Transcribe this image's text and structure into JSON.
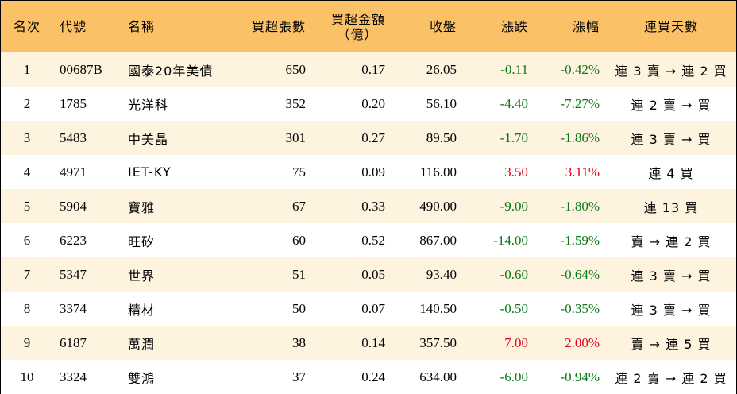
{
  "headers": {
    "rank": "名次",
    "code": "代號",
    "name": "名稱",
    "net_buy_lots": "買超張數",
    "net_buy_amount_line1": "買超金額",
    "net_buy_amount_line2": "（億）",
    "close": "收盤",
    "change": "漲跌",
    "change_pct": "漲幅",
    "streak": "連買天數"
  },
  "colors": {
    "header_bg": "#fbc167",
    "odd_row_bg": "#fef3df",
    "up": "#e0001b",
    "down": "#0a7a16"
  },
  "rows": [
    {
      "rank": "1",
      "code": "00687B",
      "name": "國泰20年美債",
      "lots": "650",
      "amount": "0.17",
      "close": "26.05",
      "change": "-0.11",
      "pct": "-0.42%",
      "dir": "down",
      "streak": "連 3 賣 → 連 2 買"
    },
    {
      "rank": "2",
      "code": "1785",
      "name": "光洋科",
      "lots": "352",
      "amount": "0.20",
      "close": "56.10",
      "change": "-4.40",
      "pct": "-7.27%",
      "dir": "down",
      "streak": "連 2 賣 → 買"
    },
    {
      "rank": "3",
      "code": "5483",
      "name": "中美晶",
      "lots": "301",
      "amount": "0.27",
      "close": "89.50",
      "change": "-1.70",
      "pct": "-1.86%",
      "dir": "down",
      "streak": "連 3 賣 → 買"
    },
    {
      "rank": "4",
      "code": "4971",
      "name": "IET-KY",
      "lots": "75",
      "amount": "0.09",
      "close": "116.00",
      "change": "3.50",
      "pct": "3.11%",
      "dir": "up",
      "streak": "連 4 買"
    },
    {
      "rank": "5",
      "code": "5904",
      "name": "寶雅",
      "lots": "67",
      "amount": "0.33",
      "close": "490.00",
      "change": "-9.00",
      "pct": "-1.80%",
      "dir": "down",
      "streak": "連 13 買"
    },
    {
      "rank": "6",
      "code": "6223",
      "name": "旺矽",
      "lots": "60",
      "amount": "0.52",
      "close": "867.00",
      "change": "-14.00",
      "pct": "-1.59%",
      "dir": "down",
      "streak": "賣 → 連 2 買"
    },
    {
      "rank": "7",
      "code": "5347",
      "name": "世界",
      "lots": "51",
      "amount": "0.05",
      "close": "93.40",
      "change": "-0.60",
      "pct": "-0.64%",
      "dir": "down",
      "streak": "連 3 賣 → 買"
    },
    {
      "rank": "8",
      "code": "3374",
      "name": "精材",
      "lots": "50",
      "amount": "0.07",
      "close": "140.50",
      "change": "-0.50",
      "pct": "-0.35%",
      "dir": "down",
      "streak": "連 3 賣 → 買"
    },
    {
      "rank": "9",
      "code": "6187",
      "name": "萬潤",
      "lots": "38",
      "amount": "0.14",
      "close": "357.50",
      "change": "7.00",
      "pct": "2.00%",
      "dir": "up",
      "streak": "賣 → 連 5 買"
    },
    {
      "rank": "10",
      "code": "3324",
      "name": "雙鴻",
      "lots": "37",
      "amount": "0.24",
      "close": "634.00",
      "change": "-6.00",
      "pct": "-0.94%",
      "dir": "down",
      "streak": "連 2 賣 → 連 2 買"
    }
  ]
}
